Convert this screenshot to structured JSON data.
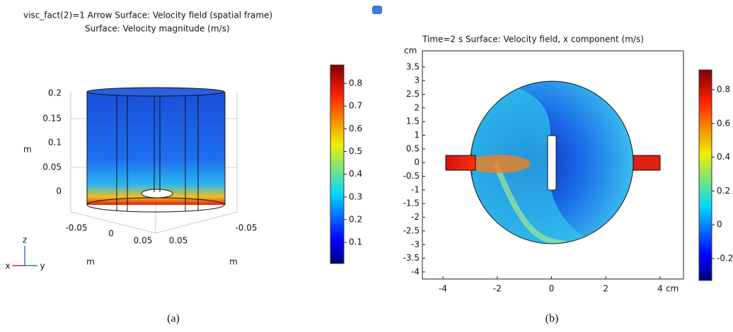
{
  "panel_a": {
    "title_line1": "visc_fact(2)=1   Arrow Surface: Velocity field (spatial frame)",
    "title_line2": "Surface: Velocity magnitude (m/s)",
    "z_ticks": [
      "0.2",
      "0.15",
      "0.1",
      "0.05",
      "0"
    ],
    "z_label": "m",
    "x_ticks": [
      "-0.05",
      "0",
      "0.05"
    ],
    "y_ticks": [
      "0.05",
      "-0.05"
    ],
    "x_label": "m",
    "y_label": "m",
    "triad": {
      "z": "z",
      "x": "x",
      "y": "y"
    },
    "colorbar": {
      "lim": [
        0.007,
        0.881
      ],
      "ticks": [
        0.8,
        0.7,
        0.6,
        0.5,
        0.4,
        0.3,
        0.2,
        0.1
      ]
    },
    "caption": "(a)"
  },
  "panel_b": {
    "title": "Time=2 s   Surface: Velocity field, x component (m/s)",
    "unit": "cm",
    "xlim": [
      -4.755,
      4.86
    ],
    "ylim": [
      -4.26,
      4.09
    ],
    "xticks": [
      -4,
      -2,
      0,
      2,
      4
    ],
    "yticks": [
      3.5,
      3,
      2.5,
      2,
      1.5,
      1,
      0.5,
      0,
      -0.5,
      -1,
      -1.5,
      -2,
      -2.5,
      -3,
      -3.5,
      -4
    ],
    "colorbar": {
      "lim": [
        -0.33,
        0.917
      ],
      "ticks": [
        0.8,
        0.6,
        0.4,
        0.2,
        0,
        -0.2
      ]
    },
    "caption": "(b)"
  }
}
